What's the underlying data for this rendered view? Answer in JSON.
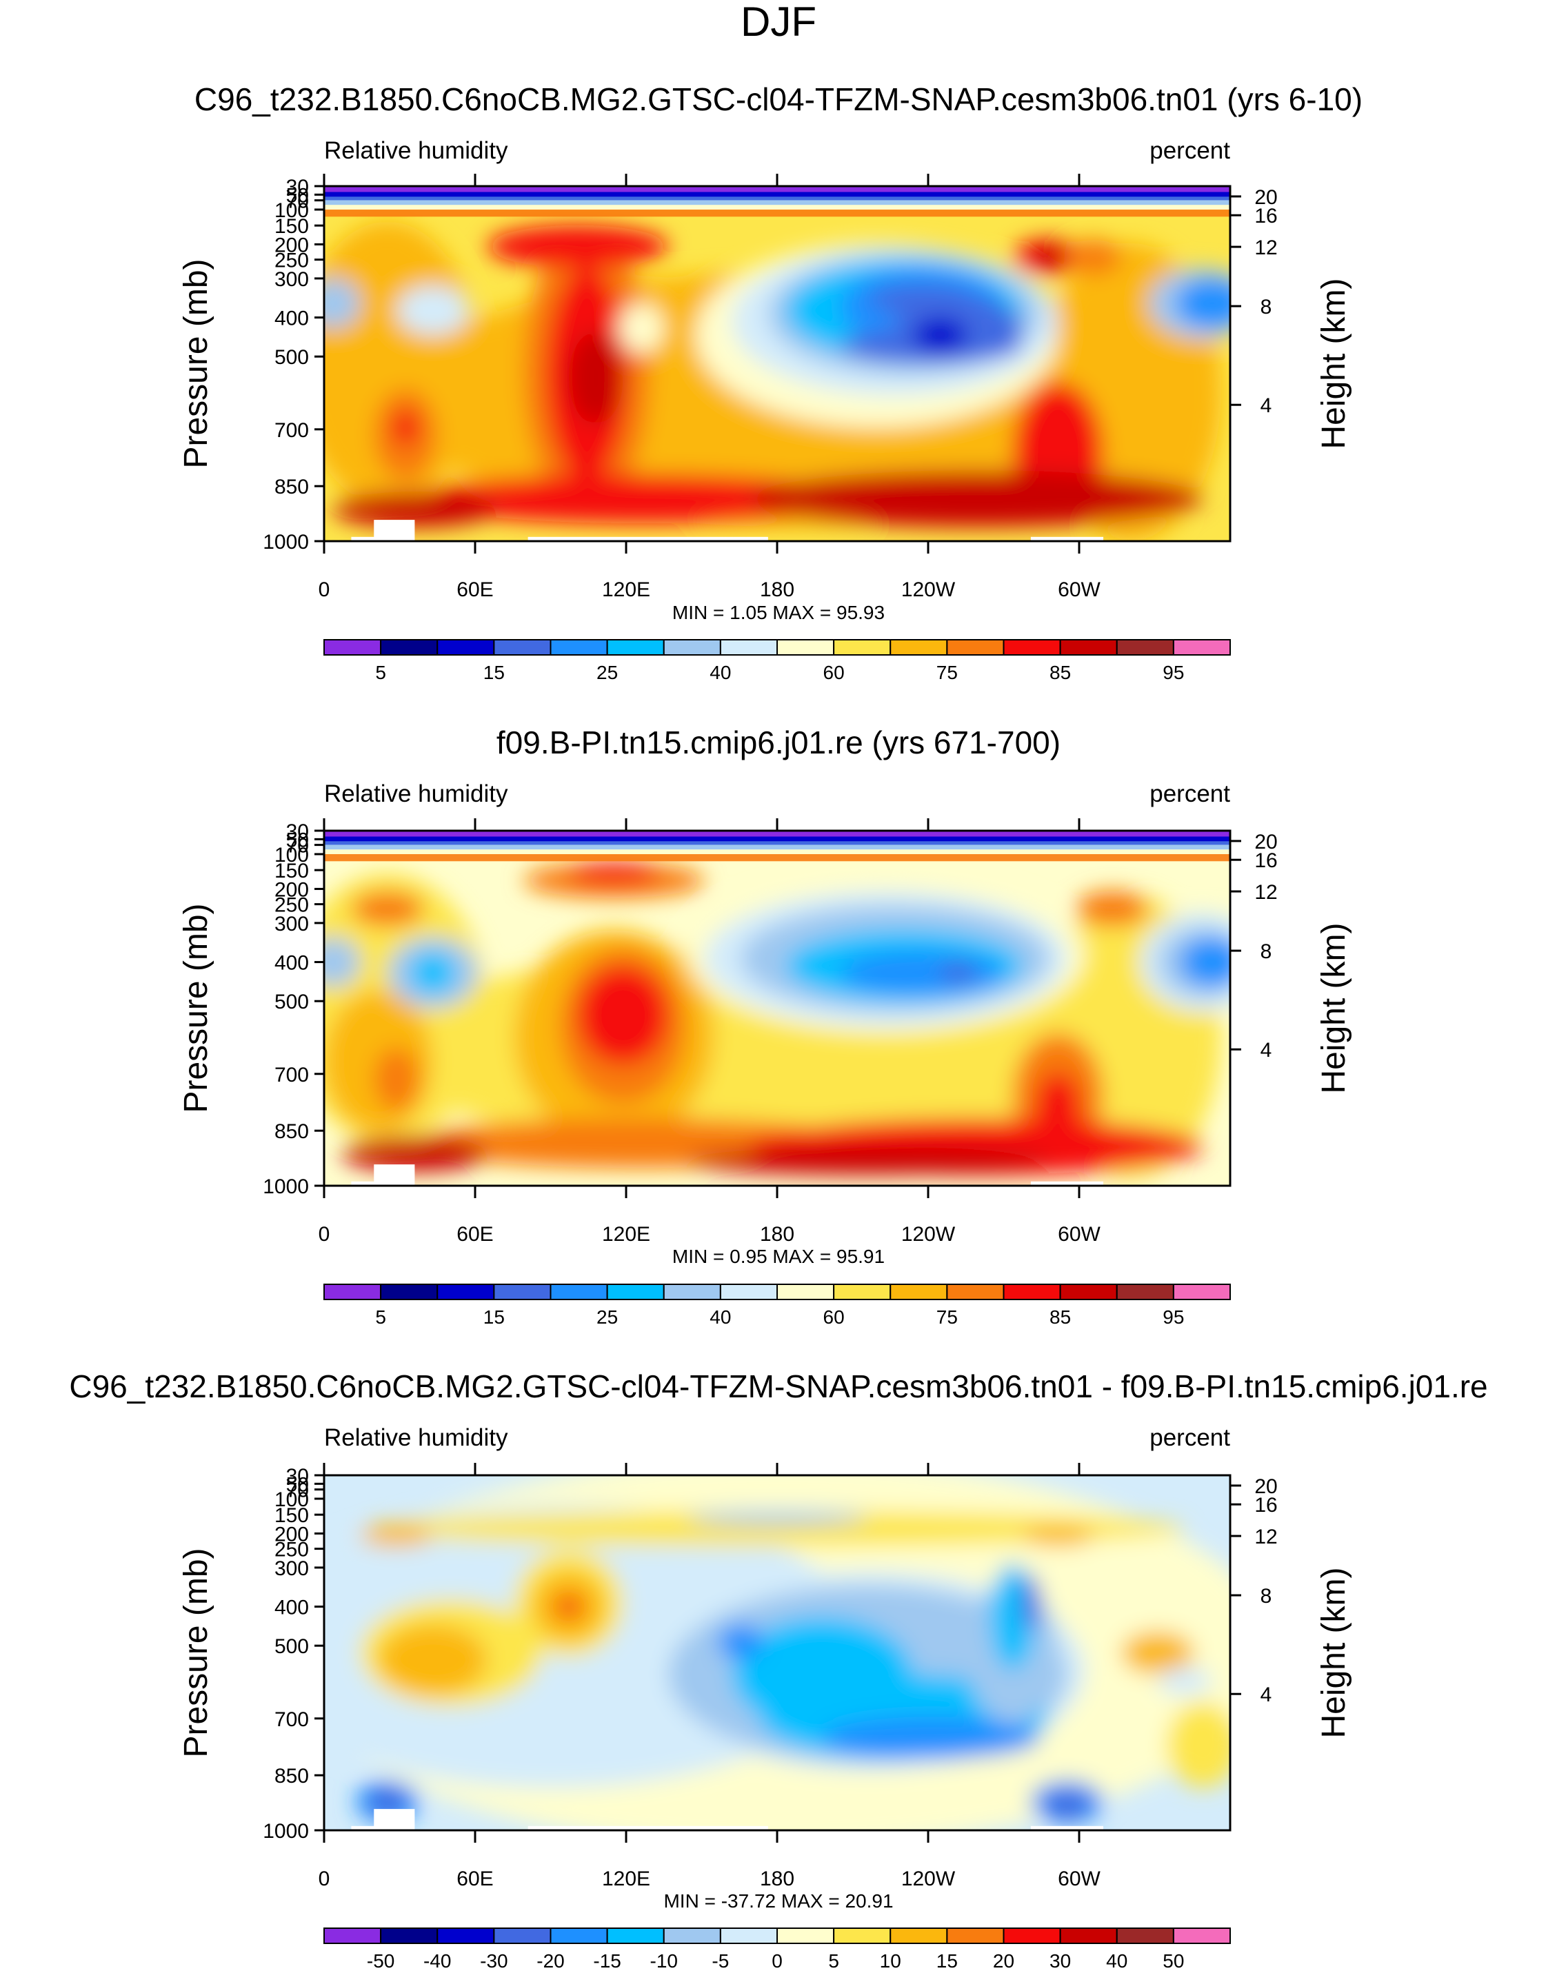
{
  "figure": {
    "title": "DJF"
  },
  "chart_data": [
    {
      "type": "heatmap",
      "title": "C96_t232.B1850.C6noCB.MG2.GTSC-cl04-TFZM-SNAP.cesm3b06.tn01 (yrs 6-10)",
      "left_label": "Relative humidity",
      "right_label": "percent",
      "ylabel": "Pressure (mb)",
      "ylabel_right": "Height (km)",
      "xlabel": "",
      "x_ticks": [
        "0",
        "60E",
        "120E",
        "180",
        "120W",
        "60W"
      ],
      "y_ticks": [
        "30",
        "50",
        "70",
        "100",
        "150",
        "200",
        "250",
        "300",
        "400",
        "500",
        "700",
        "850",
        "1000"
      ],
      "y_ticks_right": [
        "20",
        "16",
        "12",
        "8",
        "4"
      ],
      "stats": "MIN =   1.05  MAX =  95.93",
      "colorbar_labels": [
        "5",
        "15",
        "25",
        "40",
        "60",
        "75",
        "85",
        "95"
      ],
      "colorbar_colors": [
        "#8a2be2",
        "#00008b",
        "#0000cd",
        "#4169e1",
        "#1e90ff",
        "#00bfff",
        "#9fc8f0",
        "#d4ecfb",
        "#fffecd",
        "#fde64b",
        "#fbb70d",
        "#f87c0f",
        "#f50a0a",
        "#c90000",
        "#9b2828",
        "#f46bbb"
      ]
    },
    {
      "type": "heatmap",
      "title": "f09.B-PI.tn15.cmip6.j01.re (yrs 671-700)",
      "left_label": "Relative humidity",
      "right_label": "percent",
      "ylabel": "Pressure (mb)",
      "ylabel_right": "Height (km)",
      "xlabel": "",
      "x_ticks": [
        "0",
        "60E",
        "120E",
        "180",
        "120W",
        "60W"
      ],
      "y_ticks": [
        "30",
        "50",
        "70",
        "100",
        "150",
        "200",
        "250",
        "300",
        "400",
        "500",
        "700",
        "850",
        "1000"
      ],
      "y_ticks_right": [
        "20",
        "16",
        "12",
        "8",
        "4"
      ],
      "stats": "MIN =   0.95  MAX =  95.91",
      "colorbar_labels": [
        "5",
        "15",
        "25",
        "40",
        "60",
        "75",
        "85",
        "95"
      ],
      "colorbar_colors": [
        "#8a2be2",
        "#00008b",
        "#0000cd",
        "#4169e1",
        "#1e90ff",
        "#00bfff",
        "#9fc8f0",
        "#d4ecfb",
        "#fffecd",
        "#fde64b",
        "#fbb70d",
        "#f87c0f",
        "#f50a0a",
        "#c90000",
        "#9b2828",
        "#f46bbb"
      ]
    },
    {
      "type": "heatmap",
      "title": "C96_t232.B1850.C6noCB.MG2.GTSC-cl04-TFZM-SNAP.cesm3b06.tn01 - f09.B-PI.tn15.cmip6.j01.re",
      "left_label": "Relative humidity",
      "right_label": "percent",
      "ylabel": "Pressure (mb)",
      "ylabel_right": "Height (km)",
      "xlabel": "",
      "x_ticks": [
        "0",
        "60E",
        "120E",
        "180",
        "120W",
        "60W"
      ],
      "y_ticks": [
        "30",
        "50",
        "70",
        "100",
        "150",
        "200",
        "250",
        "300",
        "400",
        "500",
        "700",
        "850",
        "1000"
      ],
      "y_ticks_right": [
        "20",
        "16",
        "12",
        "8",
        "4"
      ],
      "stats": "MIN = -37.72  MAX =  20.91",
      "colorbar_labels": [
        "-50",
        "-40",
        "-30",
        "-20",
        "-15",
        "-10",
        "-5",
        "0",
        "5",
        "10",
        "15",
        "20",
        "30",
        "40",
        "50"
      ],
      "colorbar_colors": [
        "#8a2be2",
        "#00008b",
        "#0000cd",
        "#4169e1",
        "#1e90ff",
        "#00bfff",
        "#9fc8f0",
        "#d4ecfb",
        "#fffecd",
        "#fde64b",
        "#fbb70d",
        "#f87c0f",
        "#f50a0a",
        "#c90000",
        "#9b2828",
        "#f46bbb"
      ]
    }
  ]
}
